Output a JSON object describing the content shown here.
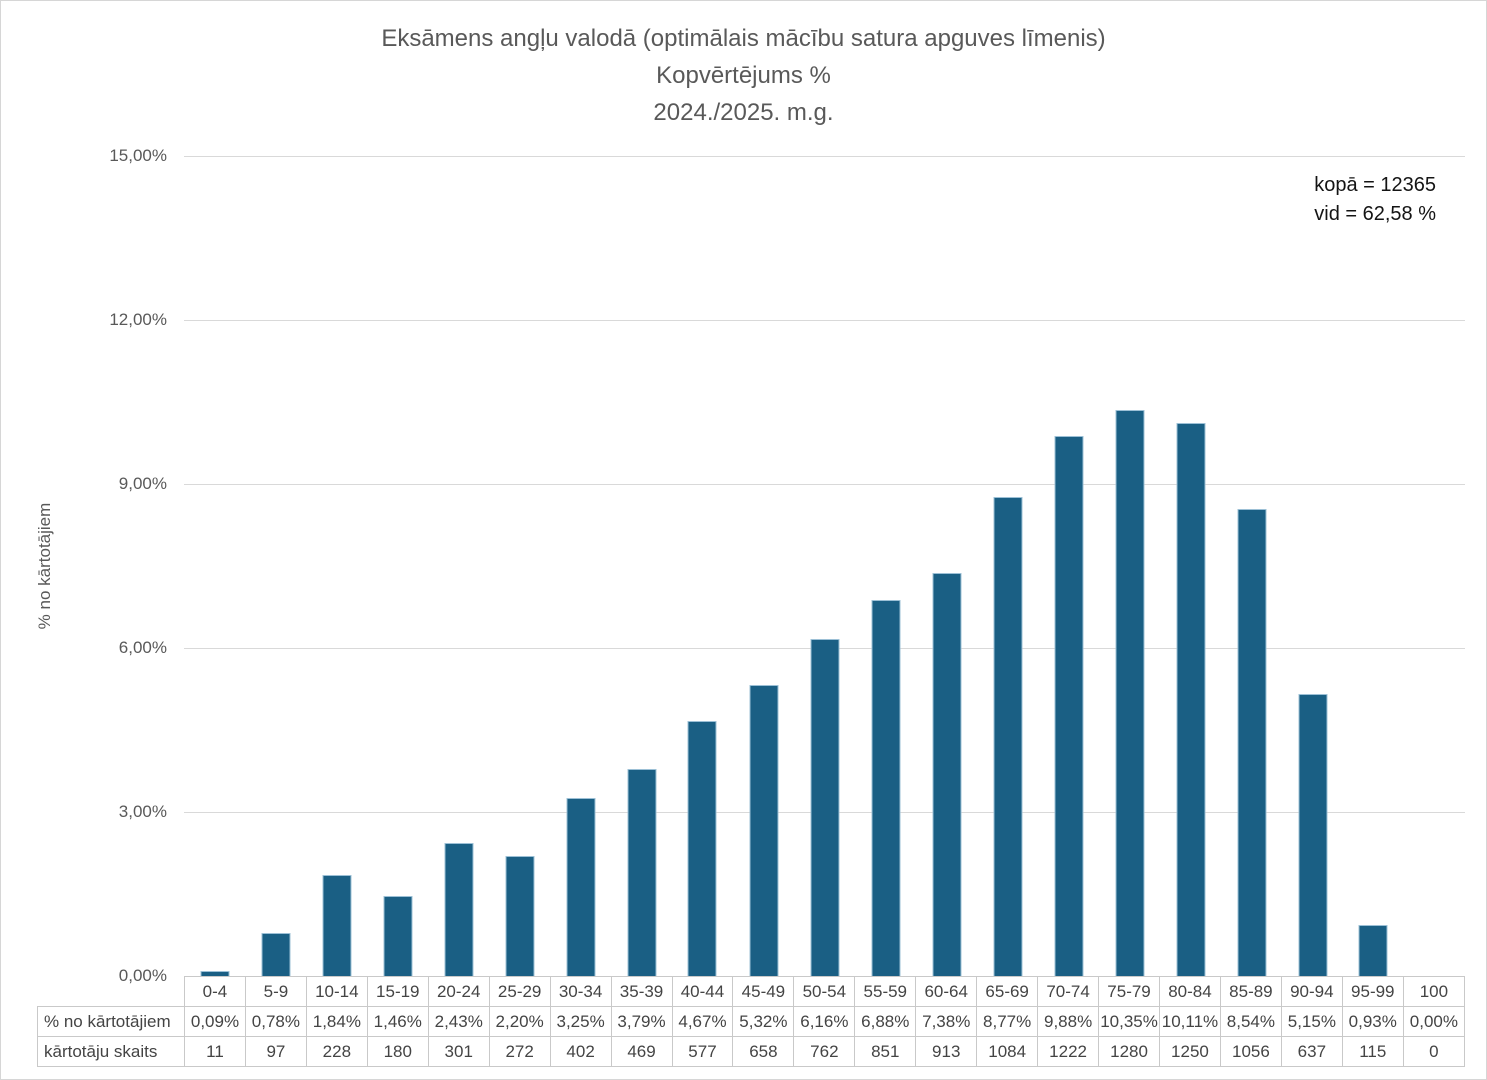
{
  "title": {
    "line1": "Eksāmens angļu valodā (optimālais mācību satura apguves līmenis)",
    "line2": "Kopvērtējums %",
    "line3": "2024./2025. m.g."
  },
  "annotation": {
    "total": "kopā = 12365",
    "average": "vid = 62,58 %"
  },
  "y_axis": {
    "label": "% no kārtotājiem",
    "ticks": [
      "15,00%",
      "12,00%",
      "9,00%",
      "6,00%",
      "3,00%",
      "0,00%"
    ]
  },
  "table": {
    "percent_row_label": "% no kārtotājiem",
    "count_row_label": "kārtotāju skaits"
  },
  "colors": {
    "bar": "#1A5F84",
    "bar_border": "#9cc0d6",
    "grid": "#d9d9d9",
    "text": "#595959"
  },
  "chart_data": {
    "type": "bar",
    "title": "Eksāmens angļu valodā (optimālais mācību satura apguves līmenis) — Kopvērtējums % — 2024./2025. m.g.",
    "xlabel": "",
    "ylabel": "% no kārtotājiem",
    "ylim": [
      0,
      15
    ],
    "grid": true,
    "legend_position": "none",
    "annotations": [
      "kopā = 12365",
      "vid = 62,58 %"
    ],
    "categories": [
      "0-4",
      "5-9",
      "10-14",
      "15-19",
      "20-24",
      "25-29",
      "30-34",
      "35-39",
      "40-44",
      "45-49",
      "50-54",
      "55-59",
      "60-64",
      "65-69",
      "70-74",
      "75-79",
      "80-84",
      "85-89",
      "90-94",
      "95-99",
      "100"
    ],
    "values": [
      0.09,
      0.78,
      1.84,
      1.46,
      2.43,
      2.2,
      3.25,
      3.79,
      4.67,
      5.32,
      6.16,
      6.88,
      7.38,
      8.77,
      9.88,
      10.35,
      10.11,
      8.54,
      5.15,
      0.93,
      0.0
    ],
    "value_labels": [
      "0,09%",
      "0,78%",
      "1,84%",
      "1,46%",
      "2,43%",
      "2,20%",
      "3,25%",
      "3,79%",
      "4,67%",
      "5,32%",
      "6,16%",
      "6,88%",
      "7,38%",
      "8,77%",
      "9,88%",
      "10,35%",
      "10,11%",
      "8,54%",
      "5,15%",
      "0,93%",
      "0,00%"
    ],
    "counts": [
      "11",
      "97",
      "228",
      "180",
      "301",
      "272",
      "402",
      "469",
      "577",
      "658",
      "762",
      "851",
      "913",
      "1084",
      "1222",
      "1280",
      "1250",
      "1056",
      "637",
      "115",
      "0"
    ]
  }
}
